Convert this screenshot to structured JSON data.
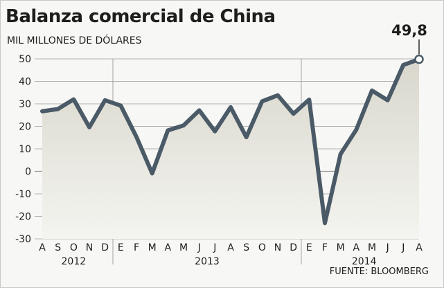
{
  "header": {
    "title": "Balanza comercial de China",
    "subtitle": "MIL MILLONES DE DÓLARES"
  },
  "footer": {
    "source": "FUENTE: BLOOMBERG"
  },
  "colors": {
    "line": "#4a5a67",
    "area_top": "#d9d7cc",
    "area_bottom": "#f4f4f0",
    "grid": "#9a9a9a"
  },
  "chart_data": {
    "type": "area",
    "ylim": [
      -30,
      50
    ],
    "yticks": [
      "50",
      "40",
      "30",
      "20",
      "10",
      "0",
      "-10",
      "-20",
      "-30"
    ],
    "ytick_values": [
      50,
      40,
      30,
      20,
      10,
      0,
      -10,
      -20,
      -30
    ],
    "grid": true,
    "categories": [
      "A",
      "S",
      "O",
      "N",
      "D",
      "E",
      "F",
      "M",
      "A",
      "M",
      "J",
      "J",
      "A",
      "S",
      "O",
      "N",
      "D",
      "E",
      "F",
      "M",
      "A",
      "M",
      "J",
      "J",
      "A"
    ],
    "years": [
      {
        "label": "2012",
        "start": 0,
        "end": 4
      },
      {
        "label": "2013",
        "start": 5,
        "end": 16
      },
      {
        "label": "2014",
        "start": 17,
        "end": 24
      }
    ],
    "series": [
      {
        "values": [
          26.7,
          27.7,
          32.0,
          19.6,
          31.6,
          29.2,
          15.3,
          -0.9,
          18.2,
          20.4,
          27.1,
          17.8,
          28.5,
          15.2,
          31.1,
          33.8,
          25.6,
          31.9,
          -23.0,
          7.7,
          18.5,
          35.9,
          31.6,
          47.3,
          49.8
        ]
      }
    ],
    "last_value_label": "49,8"
  }
}
